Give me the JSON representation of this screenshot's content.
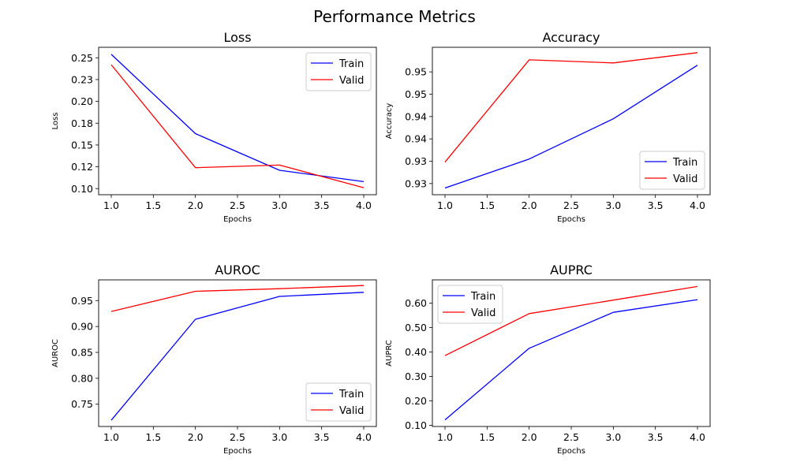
{
  "figure_title": "Performance Metrics",
  "colors": {
    "train": "#0000ff",
    "valid": "#ff0000",
    "axis": "#000000",
    "legend_border": "#cccccc"
  },
  "chart_data": [
    {
      "type": "line",
      "title": "Loss",
      "xlabel": "Epochs",
      "ylabel": "Loss",
      "x": [
        1,
        2,
        3,
        4
      ],
      "xlim": [
        0.85,
        4.15
      ],
      "xticks": [
        "1.0",
        "1.5",
        "2.0",
        "2.5",
        "3.0",
        "3.5",
        "4.0"
      ],
      "ylim": [
        0.093,
        0.262
      ],
      "yticks": [
        "0.10",
        "0.12",
        "0.15",
        "0.18",
        "0.20",
        "0.23",
        "0.25"
      ],
      "ytick_values": [
        0.1,
        0.125,
        0.15,
        0.175,
        0.2,
        0.225,
        0.25
      ],
      "legend_position": "upper right",
      "series": [
        {
          "name": "Train",
          "color": "#0000ff",
          "values": [
            0.254,
            0.163,
            0.121,
            0.108
          ]
        },
        {
          "name": "Valid",
          "color": "#ff0000",
          "values": [
            0.242,
            0.124,
            0.127,
            0.101
          ]
        }
      ]
    },
    {
      "type": "line",
      "title": "Accuracy",
      "xlabel": "Epochs",
      "ylabel": "Accuracy",
      "x": [
        1,
        2,
        3,
        4
      ],
      "xlim": [
        0.85,
        4.15
      ],
      "xticks": [
        "1.0",
        "1.5",
        "2.0",
        "2.5",
        "3.0",
        "3.5",
        "4.0"
      ],
      "ylim": [
        0.9225,
        0.9555
      ],
      "yticks": [
        "0.93",
        "0.93",
        "0.94",
        "0.94",
        "0.95",
        "0.95"
      ],
      "ytick_values": [
        0.925,
        0.93,
        0.935,
        0.94,
        0.945,
        0.95
      ],
      "legend_position": "lower right",
      "series": [
        {
          "name": "Train",
          "color": "#0000ff",
          "values": [
            0.924,
            0.9305,
            0.9395,
            0.9515
          ]
        },
        {
          "name": "Valid",
          "color": "#ff0000",
          "values": [
            0.9298,
            0.9527,
            0.952,
            0.9543
          ]
        }
      ]
    },
    {
      "type": "line",
      "title": "AUROC",
      "xlabel": "Epochs",
      "ylabel": "AUROC",
      "x": [
        1,
        2,
        3,
        4
      ],
      "xlim": [
        0.85,
        4.15
      ],
      "xticks": [
        "1.0",
        "1.5",
        "2.0",
        "2.5",
        "3.0",
        "3.5",
        "4.0"
      ],
      "ylim": [
        0.707,
        0.99
      ],
      "yticks": [
        "0.75",
        "0.80",
        "0.85",
        "0.90",
        "0.95"
      ],
      "ytick_values": [
        0.75,
        0.8,
        0.85,
        0.9,
        0.95
      ],
      "legend_position": "lower right",
      "series": [
        {
          "name": "Train",
          "color": "#0000ff",
          "values": [
            0.719,
            0.914,
            0.958,
            0.966
          ]
        },
        {
          "name": "Valid",
          "color": "#ff0000",
          "values": [
            0.929,
            0.968,
            0.973,
            0.979
          ]
        }
      ]
    },
    {
      "type": "line",
      "title": "AUPRC",
      "xlabel": "Epochs",
      "ylabel": "AUPRC",
      "x": [
        1,
        2,
        3,
        4
      ],
      "xlim": [
        0.85,
        4.15
      ],
      "xticks": [
        "1.0",
        "1.5",
        "2.0",
        "2.5",
        "3.0",
        "3.5",
        "4.0"
      ],
      "ylim": [
        0.095,
        0.695
      ],
      "yticks": [
        "0.10",
        "0.20",
        "0.30",
        "0.40",
        "0.50",
        "0.60"
      ],
      "ytick_values": [
        0.1,
        0.2,
        0.3,
        0.4,
        0.5,
        0.6
      ],
      "legend_position": "upper left",
      "series": [
        {
          "name": "Train",
          "color": "#0000ff",
          "values": [
            0.122,
            0.415,
            0.562,
            0.614
          ]
        },
        {
          "name": "Valid",
          "color": "#ff0000",
          "values": [
            0.385,
            0.557,
            0.612,
            0.668
          ]
        }
      ]
    }
  ]
}
